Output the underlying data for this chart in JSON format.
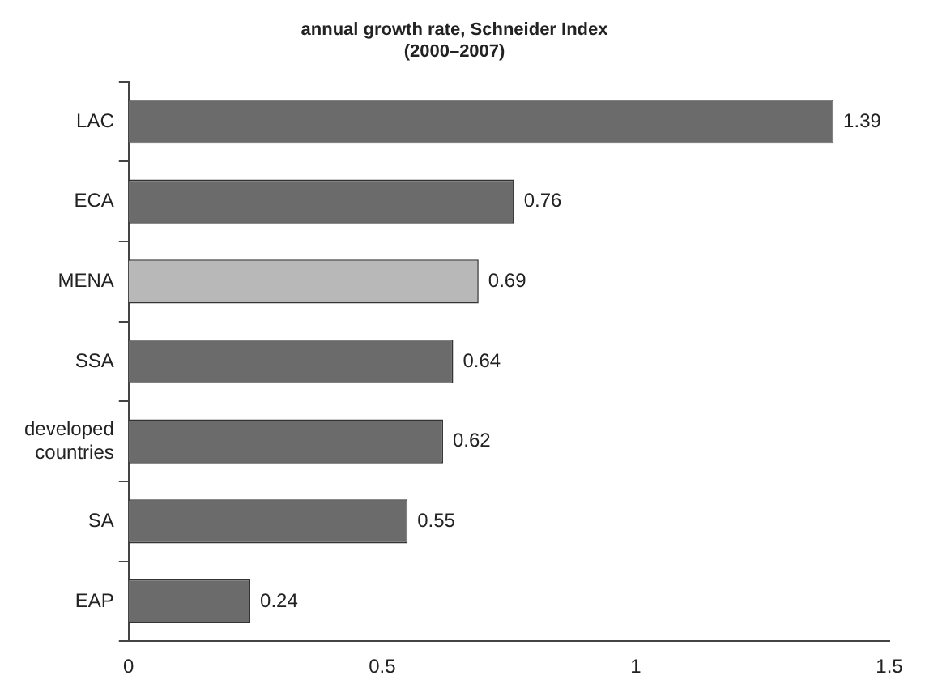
{
  "chart_data": {
    "type": "bar",
    "orientation": "horizontal",
    "title": "annual growth rate, Schneider Index",
    "subtitle": "(2000–2007)",
    "categories": [
      "LAC",
      "ECA",
      "MENA",
      "SSA",
      "developed countries",
      "SA",
      "EAP"
    ],
    "values": [
      1.39,
      0.76,
      0.69,
      0.64,
      0.62,
      0.55,
      0.24
    ],
    "colors": [
      "#6b6b6b",
      "#6b6b6b",
      "#b8b8b8",
      "#6b6b6b",
      "#6b6b6b",
      "#6b6b6b",
      "#6b6b6b"
    ],
    "xlim": [
      0,
      1.5
    ],
    "xticks": [
      0,
      0.5,
      1,
      1.5
    ],
    "grid": false,
    "legend": false,
    "data_labels": true
  }
}
